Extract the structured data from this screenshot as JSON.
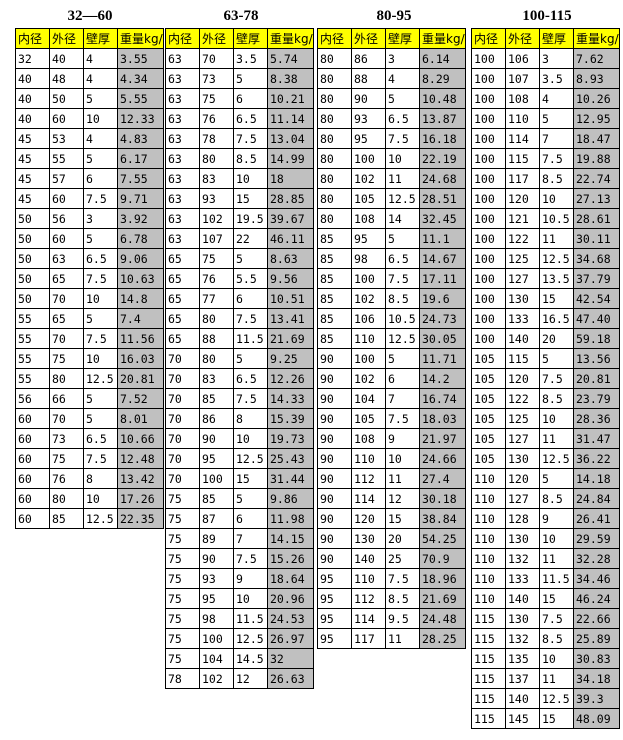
{
  "headers": [
    "内径",
    "外径",
    "壁厚",
    "重量kg/"
  ],
  "colors": {
    "header_bg": "#ffff00",
    "weight_bg": "#c0c0c0",
    "border": "#000000"
  },
  "groups": [
    {
      "title": "32—60",
      "rows": [
        [
          "32",
          "40",
          "4",
          "3.55"
        ],
        [
          "40",
          "48",
          "4",
          "4.34"
        ],
        [
          "40",
          "50",
          "5",
          "5.55"
        ],
        [
          "40",
          "60",
          "10",
          "12.33"
        ],
        [
          "45",
          "53",
          "4",
          "4.83"
        ],
        [
          "45",
          "55",
          "5",
          "6.17"
        ],
        [
          "45",
          "57",
          "6",
          "7.55"
        ],
        [
          "45",
          "60",
          "7.5",
          "9.71"
        ],
        [
          "50",
          "56",
          "3",
          "3.92"
        ],
        [
          "50",
          "60",
          "5",
          "6.78"
        ],
        [
          "50",
          "63",
          "6.5",
          "9.06"
        ],
        [
          "50",
          "65",
          "7.5",
          "10.63"
        ],
        [
          "50",
          "70",
          "10",
          "14.8"
        ],
        [
          "55",
          "65",
          "5",
          "7.4"
        ],
        [
          "55",
          "70",
          "7.5",
          "11.56"
        ],
        [
          "55",
          "75",
          "10",
          "16.03"
        ],
        [
          "55",
          "80",
          "12.5",
          "20.81"
        ],
        [
          "56",
          "66",
          "5",
          "7.52"
        ],
        [
          "60",
          "70",
          "5",
          "8.01"
        ],
        [
          "60",
          "73",
          "6.5",
          "10.66"
        ],
        [
          "60",
          "75",
          "7.5",
          "12.48"
        ],
        [
          "60",
          "76",
          "8",
          "13.42"
        ],
        [
          "60",
          "80",
          "10",
          "17.26"
        ],
        [
          "60",
          "85",
          "12.5",
          "22.35"
        ]
      ]
    },
    {
      "title": "63-78",
      "rows": [
        [
          "63",
          "70",
          "3.5",
          "5.74"
        ],
        [
          "63",
          "73",
          "5",
          "8.38"
        ],
        [
          "63",
          "75",
          "6",
          "10.21"
        ],
        [
          "63",
          "76",
          "6.5",
          "11.14"
        ],
        [
          "63",
          "78",
          "7.5",
          "13.04"
        ],
        [
          "63",
          "80",
          "8.5",
          "14.99"
        ],
        [
          "63",
          "83",
          "10",
          "18"
        ],
        [
          "63",
          "93",
          "15",
          "28.85"
        ],
        [
          "63",
          "102",
          "19.5",
          "39.67"
        ],
        [
          "63",
          "107",
          "22",
          "46.11"
        ],
        [
          "65",
          "75",
          "5",
          "8.63"
        ],
        [
          "65",
          "76",
          "5.5",
          "9.56"
        ],
        [
          "65",
          "77",
          "6",
          "10.51"
        ],
        [
          "65",
          "80",
          "7.5",
          "13.41"
        ],
        [
          "65",
          "88",
          "11.5",
          "21.69"
        ],
        [
          "70",
          "80",
          "5",
          "9.25"
        ],
        [
          "70",
          "83",
          "6.5",
          "12.26"
        ],
        [
          "70",
          "85",
          "7.5",
          "14.33"
        ],
        [
          "70",
          "86",
          "8",
          "15.39"
        ],
        [
          "70",
          "90",
          "10",
          "19.73"
        ],
        [
          "70",
          "95",
          "12.5",
          "25.43"
        ],
        [
          "70",
          "100",
          "15",
          "31.44"
        ],
        [
          "75",
          "85",
          "5",
          "9.86"
        ],
        [
          "75",
          "87",
          "6",
          "11.98"
        ],
        [
          "75",
          "89",
          "7",
          "14.15"
        ],
        [
          "75",
          "90",
          "7.5",
          "15.26"
        ],
        [
          "75",
          "93",
          "9",
          "18.64"
        ],
        [
          "75",
          "95",
          "10",
          "20.96"
        ],
        [
          "75",
          "98",
          "11.5",
          "24.53"
        ],
        [
          "75",
          "100",
          "12.5",
          "26.97"
        ],
        [
          "75",
          "104",
          "14.5",
          "32"
        ],
        [
          "78",
          "102",
          "12",
          "26.63"
        ]
      ]
    },
    {
      "title": "80-95",
      "rows": [
        [
          "80",
          "86",
          "3",
          "6.14"
        ],
        [
          "80",
          "88",
          "4",
          "8.29"
        ],
        [
          "80",
          "90",
          "5",
          "10.48"
        ],
        [
          "80",
          "93",
          "6.5",
          "13.87"
        ],
        [
          "80",
          "95",
          "7.5",
          "16.18"
        ],
        [
          "80",
          "100",
          "10",
          "22.19"
        ],
        [
          "80",
          "102",
          "11",
          "24.68"
        ],
        [
          "80",
          "105",
          "12.5",
          "28.51"
        ],
        [
          "80",
          "108",
          "14",
          "32.45"
        ],
        [
          "85",
          "95",
          "5",
          "11.1"
        ],
        [
          "85",
          "98",
          "6.5",
          "14.67"
        ],
        [
          "85",
          "100",
          "7.5",
          "17.11"
        ],
        [
          "85",
          "102",
          "8.5",
          "19.6"
        ],
        [
          "85",
          "106",
          "10.5",
          "24.73"
        ],
        [
          "85",
          "110",
          "12.5",
          "30.05"
        ],
        [
          "90",
          "100",
          "5",
          "11.71"
        ],
        [
          "90",
          "102",
          "6",
          "14.2"
        ],
        [
          "90",
          "104",
          "7",
          "16.74"
        ],
        [
          "90",
          "105",
          "7.5",
          "18.03"
        ],
        [
          "90",
          "108",
          "9",
          "21.97"
        ],
        [
          "90",
          "110",
          "10",
          "24.66"
        ],
        [
          "90",
          "112",
          "11",
          "27.4"
        ],
        [
          "90",
          "114",
          "12",
          "30.18"
        ],
        [
          "90",
          "120",
          "15",
          "38.84"
        ],
        [
          "90",
          "130",
          "20",
          "54.25"
        ],
        [
          "90",
          "140",
          "25",
          "70.9"
        ],
        [
          "95",
          "110",
          "7.5",
          "18.96"
        ],
        [
          "95",
          "112",
          "8.5",
          "21.69"
        ],
        [
          "95",
          "114",
          "9.5",
          "24.48"
        ],
        [
          "95",
          "117",
          "11",
          "28.25"
        ]
      ]
    },
    {
      "title": "100-115",
      "rows": [
        [
          "100",
          "106",
          "3",
          "7.62"
        ],
        [
          "100",
          "107",
          "3.5",
          "8.93"
        ],
        [
          "100",
          "108",
          "4",
          "10.26"
        ],
        [
          "100",
          "110",
          "5",
          "12.95"
        ],
        [
          "100",
          "114",
          "7",
          "18.47"
        ],
        [
          "100",
          "115",
          "7.5",
          "19.88"
        ],
        [
          "100",
          "117",
          "8.5",
          "22.74"
        ],
        [
          "100",
          "120",
          "10",
          "27.13"
        ],
        [
          "100",
          "121",
          "10.5",
          "28.61"
        ],
        [
          "100",
          "122",
          "11",
          "30.11"
        ],
        [
          "100",
          "125",
          "12.5",
          "34.68"
        ],
        [
          "100",
          "127",
          "13.5",
          "37.79"
        ],
        [
          "100",
          "130",
          "15",
          "42.54"
        ],
        [
          "100",
          "133",
          "16.5",
          "47.40"
        ],
        [
          "100",
          "140",
          "20",
          "59.18"
        ],
        [
          "105",
          "115",
          "5",
          "13.56"
        ],
        [
          "105",
          "120",
          "7.5",
          "20.81"
        ],
        [
          "105",
          "122",
          "8.5",
          "23.79"
        ],
        [
          "105",
          "125",
          "10",
          "28.36"
        ],
        [
          "105",
          "127",
          "11",
          "31.47"
        ],
        [
          "105",
          "130",
          "12.5",
          "36.22"
        ],
        [
          "110",
          "120",
          "5",
          "14.18"
        ],
        [
          "110",
          "127",
          "8.5",
          "24.84"
        ],
        [
          "110",
          "128",
          "9",
          "26.41"
        ],
        [
          "110",
          "130",
          "10",
          "29.59"
        ],
        [
          "110",
          "132",
          "11",
          "32.28"
        ],
        [
          "110",
          "133",
          "11.5",
          "34.46"
        ],
        [
          "110",
          "140",
          "15",
          "46.24"
        ],
        [
          "115",
          "130",
          "7.5",
          "22.66"
        ],
        [
          "115",
          "132",
          "8.5",
          "25.89"
        ],
        [
          "115",
          "135",
          "10",
          "30.83"
        ],
        [
          "115",
          "137",
          "11",
          "34.18"
        ],
        [
          "115",
          "140",
          "12.5",
          "39.3"
        ],
        [
          "115",
          "145",
          "15",
          "48.09"
        ]
      ]
    }
  ]
}
